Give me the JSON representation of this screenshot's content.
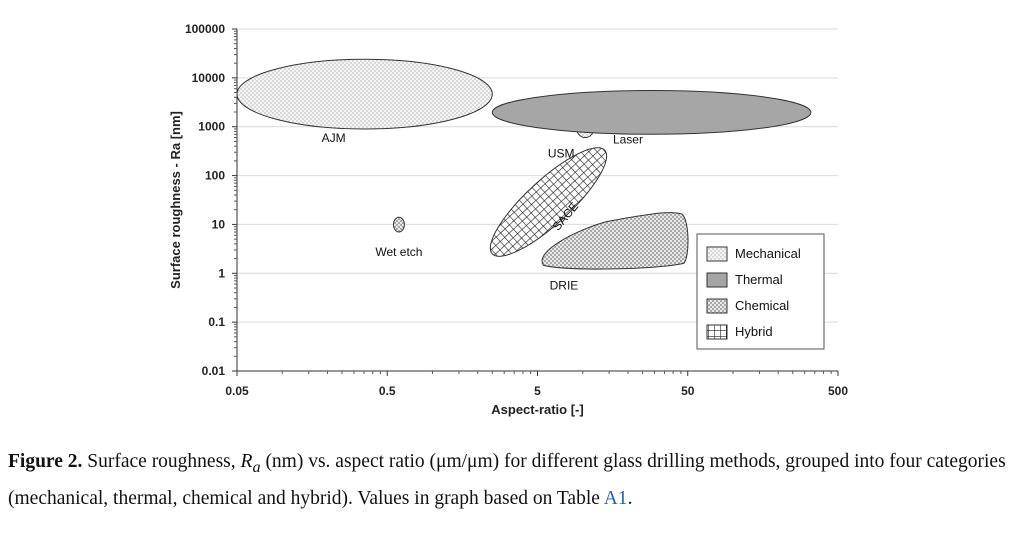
{
  "chart_data": {
    "type": "region-chart",
    "xlabel": "Aspect-ratio [-]",
    "ylabel": "Surface roughness - Ra [nm]",
    "x_scale": "log",
    "y_scale": "log",
    "xlim": [
      0.05,
      500
    ],
    "ylim": [
      0.01,
      100000
    ],
    "x_ticks": [
      "0.05",
      "0.5",
      "5",
      "50",
      "500"
    ],
    "y_ticks": [
      "0.01",
      "0.1",
      "1",
      "10",
      "100",
      "1000",
      "10000",
      "100000"
    ],
    "grid": "horizontal",
    "legend": {
      "position": "bottom-right",
      "entries": [
        {
          "name": "Mechanical",
          "pattern": "dots",
          "color": "#f2f2f2"
        },
        {
          "name": "Thermal",
          "pattern": "solid",
          "color": "#a6a6a6"
        },
        {
          "name": "Chemical",
          "pattern": "checker",
          "color": "#d9d9d9"
        },
        {
          "name": "Hybrid",
          "pattern": "grid",
          "color": "#ffffff"
        }
      ]
    },
    "regions": [
      {
        "label": "AJM",
        "category": "Mechanical",
        "x_range": [
          0.05,
          2.5
        ],
        "y_range": [
          900,
          24000
        ]
      },
      {
        "label": "USM",
        "category": "Mechanical",
        "x_range": [
          9,
          12
        ],
        "y_range": [
          600,
          1800
        ]
      },
      {
        "label": "Laser",
        "category": "Thermal",
        "x_range": [
          2.5,
          330
        ],
        "y_range": [
          700,
          5500
        ]
      },
      {
        "label": "SACE",
        "category": "Hybrid",
        "x_range": [
          2.5,
          14
        ],
        "y_range": [
          2.5,
          330
        ]
      },
      {
        "label": "DRIE",
        "category": "Chemical",
        "x_range": [
          5,
          50
        ],
        "y_range": [
          1.2,
          18
        ]
      },
      {
        "label": "Wet etch",
        "category": "Chemical",
        "x_range": [
          0.55,
          0.65
        ],
        "y_range": [
          7,
          14
        ]
      }
    ]
  },
  "caption": {
    "label": "Figure 2.",
    "text_part1": " Surface roughness, ",
    "symbol": "R",
    "subscript": "a",
    "text_part2": " (nm) vs. aspect ratio (μm/μm) for different glass drilling methods, grouped into four categories (mechanical, thermal, chemical and hybrid). Values in graph based on Table ",
    "reference": "A1",
    "end": "."
  }
}
